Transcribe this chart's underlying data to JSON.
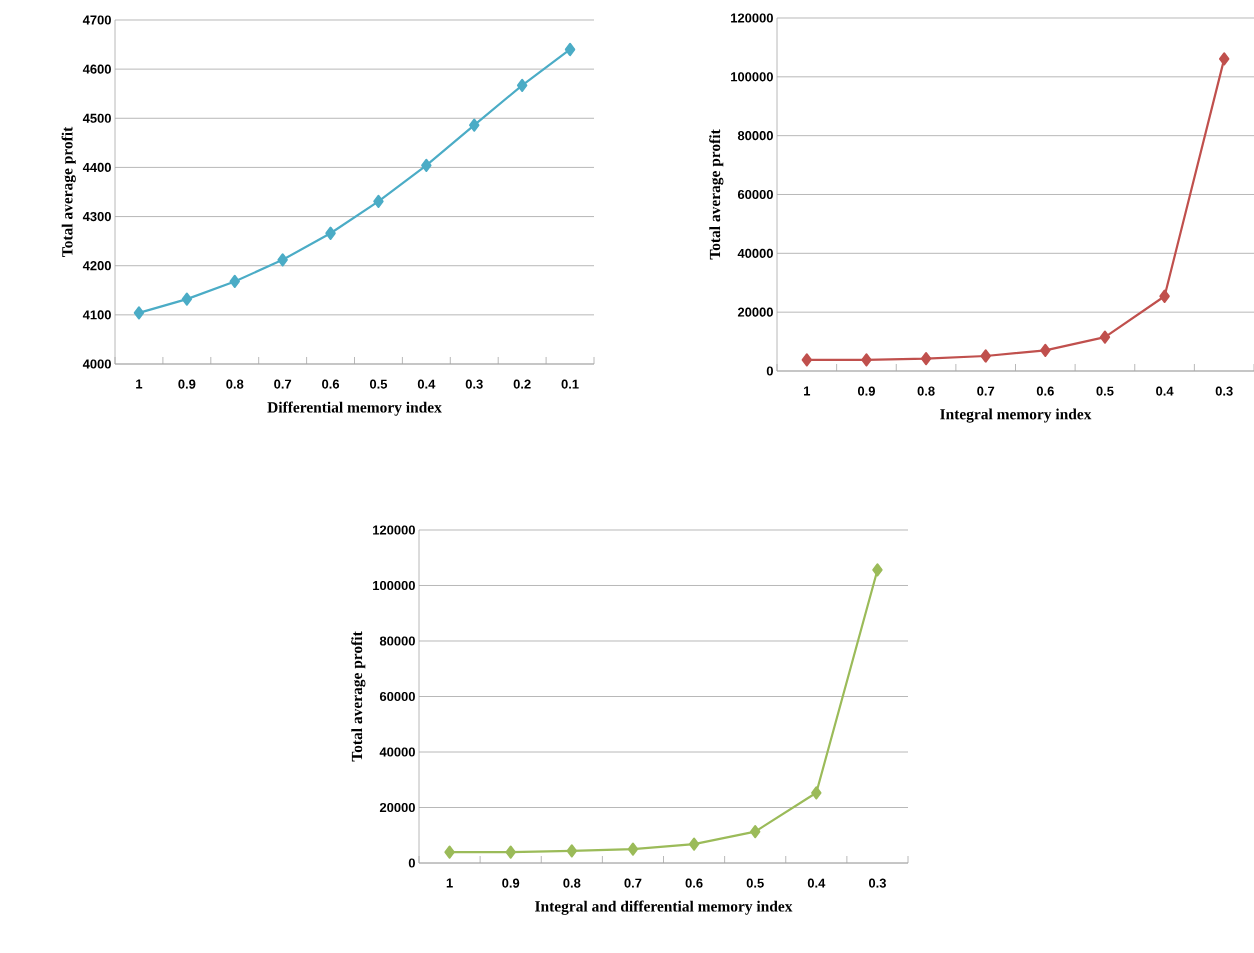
{
  "chart_data": [
    {
      "type": "line",
      "xlabel": "Differential memory index",
      "ylabel": "Total average profit",
      "categories": [
        "1",
        "0.9",
        "0.8",
        "0.7",
        "0.6",
        "0.5",
        "0.4",
        "0.3",
        "0.2",
        "0.1"
      ],
      "series": [
        {
          "color": "#4bacc6",
          "values": [
            4104,
            4132,
            4168,
            4212,
            4266,
            4331,
            4404,
            4486,
            4567,
            4640
          ]
        }
      ],
      "ylim": [
        4000,
        4700
      ],
      "yticks": [
        4000,
        4100,
        4200,
        4300,
        4400,
        4500,
        4600,
        4700
      ],
      "grid": "y",
      "marker": "diamond"
    },
    {
      "type": "line",
      "xlabel": "Integral memory index",
      "ylabel": "Total average profit",
      "categories": [
        "1",
        "0.9",
        "0.8",
        "0.7",
        "0.6",
        "0.5",
        "0.4",
        "0.3"
      ],
      "series": [
        {
          "color": "#c0504d",
          "values": [
            3800,
            3800,
            4200,
            5100,
            7000,
            11500,
            25400,
            106100
          ]
        }
      ],
      "ylim": [
        0,
        120000
      ],
      "yticks": [
        0,
        20000,
        40000,
        60000,
        80000,
        100000,
        120000
      ],
      "grid": "y",
      "marker": "diamond"
    },
    {
      "type": "line",
      "xlabel": "Integral and differential memory index",
      "ylabel": "Total average profit",
      "categories": [
        "1",
        "0.9",
        "0.8",
        "0.7",
        "0.6",
        "0.5",
        "0.4",
        "0.3"
      ],
      "series": [
        {
          "color": "#9bbb59",
          "values": [
            3900,
            3900,
            4400,
            5000,
            6800,
            11300,
            25300,
            105600
          ]
        }
      ],
      "ylim": [
        0,
        120000
      ],
      "yticks": [
        0,
        20000,
        40000,
        60000,
        80000,
        100000,
        120000
      ],
      "grid": "y",
      "marker": "diamond"
    }
  ]
}
